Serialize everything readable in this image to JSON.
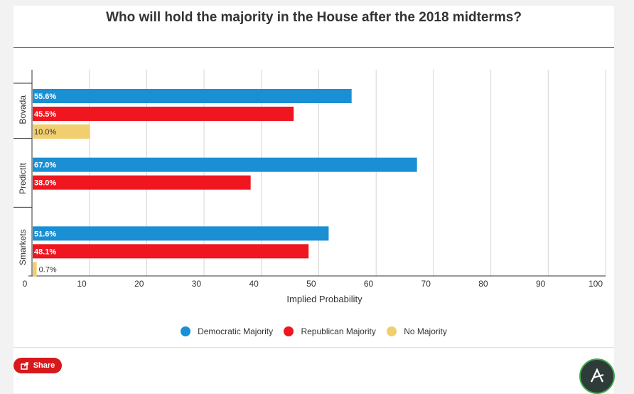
{
  "title": "Who will hold the majority in the House after the 2018 midterms?",
  "share_label": "Share",
  "colors": {
    "democratic": "#1a8fd4",
    "republican": "#ef1620",
    "none": "#f1cf6e"
  },
  "chart_data": {
    "type": "bar",
    "orientation": "horizontal",
    "title": "Who will hold the majority in the House after the 2018 midterms?",
    "xlabel": "Implied Probability",
    "ylabel": "",
    "xlim": [
      0,
      100
    ],
    "xticks": [
      "0",
      "10",
      "20",
      "30",
      "40",
      "50",
      "60",
      "70",
      "80",
      "90",
      "100"
    ],
    "categories": [
      "Bovada",
      "PredictIt",
      "Smarkets"
    ],
    "series": [
      {
        "name": "Democratic Majority",
        "values": [
          55.6,
          67.0,
          51.6
        ],
        "labels": [
          "55.6%",
          "67.0%",
          "51.6%"
        ]
      },
      {
        "name": "Republican Majority",
        "values": [
          45.5,
          38.0,
          48.1
        ],
        "labels": [
          "45.5%",
          "38.0%",
          "48.1%"
        ]
      },
      {
        "name": "No Majority",
        "values": [
          10.0,
          null,
          0.7
        ],
        "labels": [
          "10.0%",
          null,
          "0.7%"
        ]
      }
    ],
    "grid": true,
    "legend_position": "bottom"
  }
}
